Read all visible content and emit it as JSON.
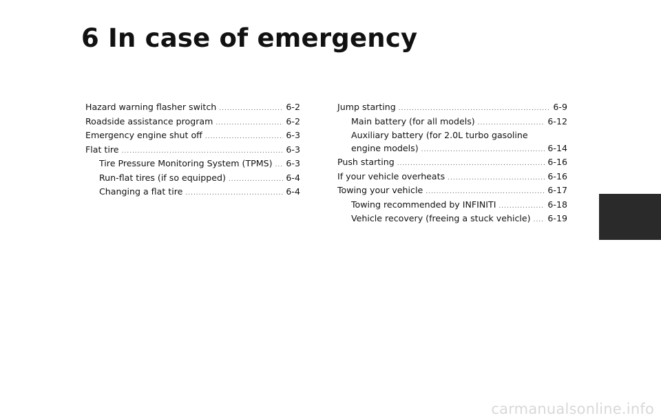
{
  "chapter": {
    "title": "6 In case of emergency"
  },
  "toc_left": [
    {
      "label": "Hazard warning flasher switch",
      "page": "6-2"
    },
    {
      "label": "Roadside assistance program",
      "page": "6-2"
    },
    {
      "label": "Emergency engine shut off",
      "page": "6-3"
    },
    {
      "label": "Flat tire",
      "page": "6-3"
    },
    {
      "label": "Tire Pressure Monitoring System (TPMS)",
      "page": "6-3"
    },
    {
      "label": "Run-flat tires (if so equipped)",
      "page": "6-4"
    },
    {
      "label": "Changing a flat tire",
      "page": "6-4"
    }
  ],
  "toc_right": [
    {
      "label": "Jump starting",
      "page": "6-9"
    },
    {
      "label": "Main battery (for all models)",
      "page": "6-12"
    },
    {
      "label_line1": "Auxiliary battery (for 2.0L turbo gasoline",
      "label_line2": "engine models)",
      "page": "6-14"
    },
    {
      "label": "Push starting",
      "page": "6-16"
    },
    {
      "label": "If your vehicle overheats",
      "page": "6-16"
    },
    {
      "label": "Towing your vehicle",
      "page": "6-17"
    },
    {
      "label": "Towing recommended by INFINITI",
      "page": "6-18"
    },
    {
      "label": "Vehicle recovery (freeing a stuck vehicle)",
      "page": "6-19"
    }
  ],
  "watermark": {
    "text": "carmanualsonline.info"
  },
  "colors": {
    "tab": "#2a2a2a",
    "text": "#111111",
    "watermark": "#d8d8d8"
  }
}
